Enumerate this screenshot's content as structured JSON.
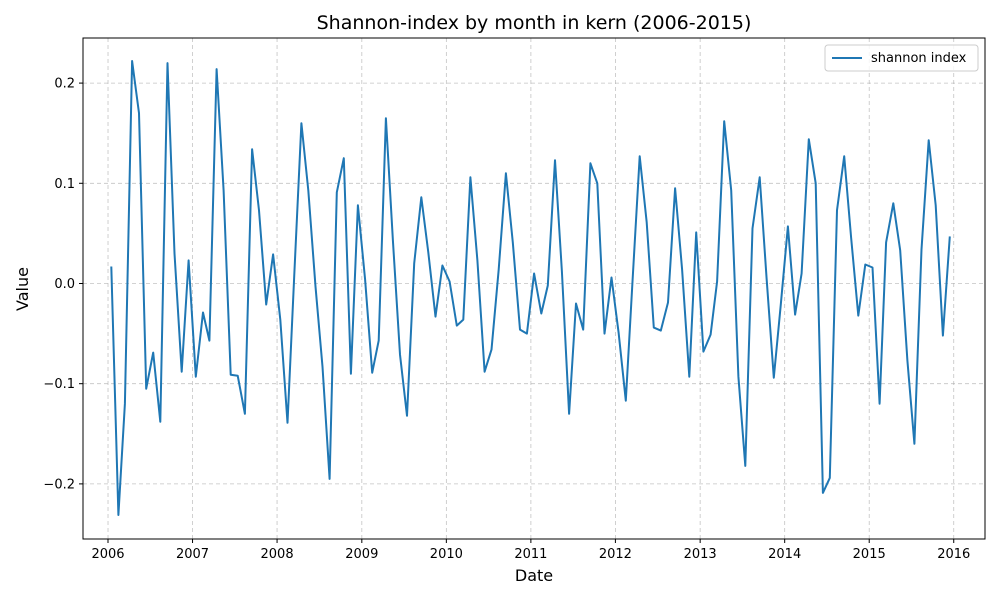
{
  "chart_data": {
    "type": "line",
    "title": "Shannon-index by month in kern (2006-2015)",
    "xlabel": "Date",
    "ylabel": "Value",
    "x_ticks": [
      "2006",
      "2007",
      "2008",
      "2009",
      "2010",
      "2011",
      "2012",
      "2013",
      "2014",
      "2015",
      "2016"
    ],
    "y_ticks": [
      "−0.2",
      "−0.1",
      "0.0",
      "0.1",
      "0.2"
    ],
    "y_tick_values": [
      -0.2,
      -0.1,
      0.0,
      0.1,
      0.2
    ],
    "xlim": [
      "2005-09-15",
      "2016-05-15"
    ],
    "ylim": [
      -0.255,
      0.245
    ],
    "grid": true,
    "legend_position": "top-right",
    "colors": {
      "series": "#1f77b4",
      "grid": "#b0b0b0"
    },
    "series": [
      {
        "name": "shannon index",
        "x": [
          "2006-01",
          "2006-02",
          "2006-03",
          "2006-04",
          "2006-05",
          "2006-06",
          "2006-07",
          "2006-08",
          "2006-09",
          "2006-10",
          "2006-11",
          "2006-12",
          "2007-01",
          "2007-02",
          "2007-03",
          "2007-04",
          "2007-05",
          "2007-06",
          "2007-07",
          "2007-08",
          "2007-09",
          "2007-10",
          "2007-11",
          "2007-12",
          "2008-01",
          "2008-02",
          "2008-03",
          "2008-04",
          "2008-05",
          "2008-06",
          "2008-07",
          "2008-08",
          "2008-09",
          "2008-10",
          "2008-11",
          "2008-12",
          "2009-01",
          "2009-02",
          "2009-03",
          "2009-04",
          "2009-05",
          "2009-06",
          "2009-07",
          "2009-08",
          "2009-09",
          "2009-10",
          "2009-11",
          "2009-12",
          "2010-01",
          "2010-02",
          "2010-03",
          "2010-04",
          "2010-05",
          "2010-06",
          "2010-07",
          "2010-08",
          "2010-09",
          "2010-10",
          "2010-11",
          "2010-12",
          "2011-01",
          "2011-02",
          "2011-03",
          "2011-04",
          "2011-05",
          "2011-06",
          "2011-07",
          "2011-08",
          "2011-09",
          "2011-10",
          "2011-11",
          "2011-12",
          "2012-01",
          "2012-02",
          "2012-03",
          "2012-04",
          "2012-05",
          "2012-06",
          "2012-07",
          "2012-08",
          "2012-09",
          "2012-10",
          "2012-11",
          "2012-12",
          "2013-01",
          "2013-02",
          "2013-03",
          "2013-04",
          "2013-05",
          "2013-06",
          "2013-07",
          "2013-08",
          "2013-09",
          "2013-10",
          "2013-11",
          "2013-12",
          "2014-01",
          "2014-02",
          "2014-03",
          "2014-04",
          "2014-05",
          "2014-06",
          "2014-07",
          "2014-08",
          "2014-09",
          "2014-10",
          "2014-11",
          "2014-12",
          "2015-01",
          "2015-02",
          "2015-03",
          "2015-04",
          "2015-05",
          "2015-06",
          "2015-07",
          "2015-08",
          "2015-09",
          "2015-10",
          "2015-11",
          "2015-12"
        ],
        "values": [
          0.017,
          -0.231,
          -0.12,
          0.222,
          0.17,
          -0.105,
          -0.069,
          -0.138,
          0.22,
          0.03,
          -0.088,
          0.023,
          -0.093,
          -0.029,
          -0.057,
          0.214,
          0.093,
          -0.091,
          -0.092,
          -0.13,
          0.134,
          0.073,
          -0.021,
          0.029,
          -0.036,
          -0.139,
          0.007,
          0.16,
          0.093,
          -0.003,
          -0.083,
          -0.195,
          0.091,
          0.125,
          -0.09,
          0.078,
          0.004,
          -0.089,
          -0.057,
          0.165,
          0.043,
          -0.071,
          -0.132,
          0.02,
          0.086,
          0.031,
          -0.033,
          0.018,
          0.002,
          -0.042,
          -0.036,
          0.106,
          0.023,
          -0.088,
          -0.066,
          0.014,
          0.11,
          0.041,
          -0.046,
          -0.05,
          0.01,
          -0.03,
          -0.002,
          0.123,
          0.012,
          -0.13,
          -0.02,
          -0.046,
          0.12,
          0.1,
          -0.05,
          0.006,
          -0.049,
          -0.117,
          0.002,
          0.127,
          0.061,
          -0.044,
          -0.047,
          -0.019,
          0.095,
          0.014,
          -0.093,
          0.051,
          -0.068,
          -0.051,
          0.002,
          0.162,
          0.093,
          -0.093,
          -0.182,
          0.055,
          0.106,
          0.005,
          -0.094,
          -0.022,
          0.057,
          -0.031,
          0.01,
          0.144,
          0.1,
          -0.209,
          -0.194,
          0.073,
          0.127,
          0.046,
          -0.032,
          0.019,
          0.016,
          -0.12,
          0.041,
          0.08,
          0.033,
          -0.077,
          -0.16,
          0.034,
          0.143,
          0.078,
          -0.052,
          0.047
        ]
      }
    ]
  }
}
